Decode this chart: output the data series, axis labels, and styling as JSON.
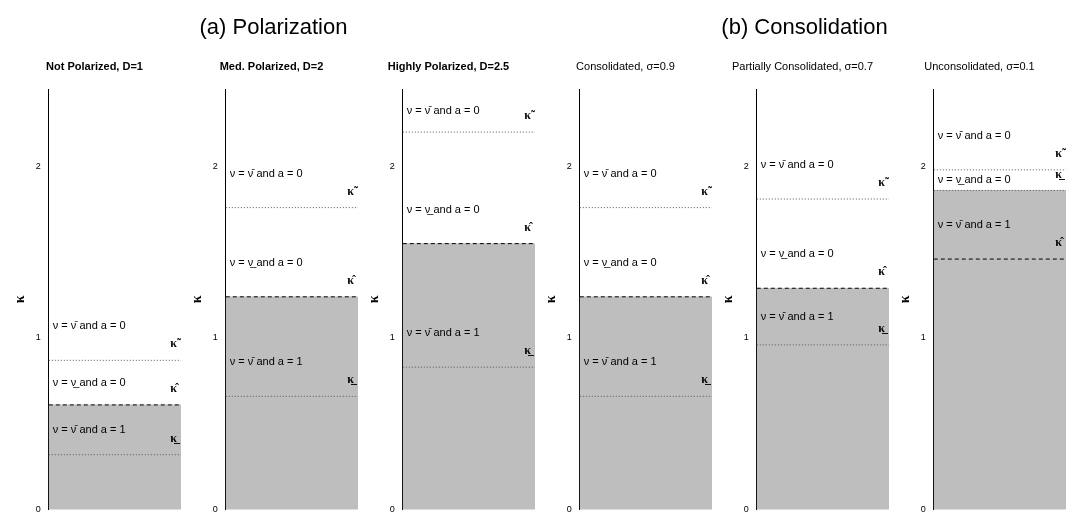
{
  "chart_data": [
    {
      "type": "bar",
      "title": "Not Polarized, D=1",
      "ylabel": "κ",
      "categories": [
        null
      ],
      "values": [
        0.61
      ],
      "color": "#bebebe",
      "ylim": [
        0,
        2.45
      ],
      "yticks": [
        0,
        1,
        2
      ],
      "grid": false,
      "legend": false,
      "ref_lines": [
        {
          "axis": "y",
          "value": 0.87,
          "label": "κ̃",
          "line_style": "dotted",
          "color": "#555555"
        },
        {
          "axis": "y",
          "value": 0.61,
          "label": "κ̂",
          "line_style": "dashed",
          "color": "#000000"
        },
        {
          "axis": "y",
          "value": 0.32,
          "label": "κ̲",
          "line_style": "dotted",
          "color": "#555555"
        }
      ],
      "annotations": [
        "(a) Polarization",
        "ν = ν̄ and a = 0",
        "ν = ν̲ and a = 0",
        "ν = ν̄ and a = 1"
      ]
    },
    {
      "type": "bar",
      "title": "Med. Polarized, D=2",
      "ylabel": "κ",
      "categories": [
        null
      ],
      "values": [
        1.24
      ],
      "color": "#bebebe",
      "ylim": [
        0,
        2.45
      ],
      "yticks": [
        0,
        1,
        2
      ],
      "grid": false,
      "legend": false,
      "ref_lines": [
        {
          "axis": "y",
          "value": 1.76,
          "label": "κ̃",
          "line_style": "dotted",
          "color": "#555555"
        },
        {
          "axis": "y",
          "value": 1.24,
          "label": "κ̂",
          "line_style": "dashed",
          "color": "#000000"
        },
        {
          "axis": "y",
          "value": 0.66,
          "label": "κ̲",
          "line_style": "dotted",
          "color": "#555555"
        }
      ],
      "annotations": [
        "ν = ν̄ and a = 0",
        "ν = ν̲ and a = 0",
        "ν = ν̄ and a = 1"
      ]
    },
    {
      "type": "bar",
      "title": "Highly Polarized, D=2.5",
      "ylabel": "κ",
      "categories": [
        null
      ],
      "values": [
        1.55
      ],
      "color": "#bebebe",
      "ylim": [
        0,
        2.45
      ],
      "yticks": [
        0,
        1,
        2
      ],
      "grid": false,
      "legend": false,
      "ref_lines": [
        {
          "axis": "y",
          "value": 2.2,
          "label": "κ̃",
          "line_style": "dotted",
          "color": "#555555"
        },
        {
          "axis": "y",
          "value": 1.55,
          "label": "κ̂",
          "line_style": "dashed",
          "color": "#000000"
        },
        {
          "axis": "y",
          "value": 0.83,
          "label": "κ̲",
          "line_style": "dotted",
          "color": "#555555"
        }
      ],
      "annotations": [
        "ν = ν̄ and a = 0",
        "ν = ν̲ and a = 0",
        "ν = ν̄ and a = 1"
      ]
    },
    {
      "type": "bar",
      "title": "Consolidated, σ=0.9",
      "ylabel": "κ",
      "categories": [
        null
      ],
      "values": [
        1.24
      ],
      "color": "#bebebe",
      "ylim": [
        0,
        2.45
      ],
      "yticks": [
        0,
        1,
        2
      ],
      "grid": false,
      "legend": false,
      "ref_lines": [
        {
          "axis": "y",
          "value": 1.76,
          "label": "κ̃",
          "line_style": "dotted",
          "color": "#555555"
        },
        {
          "axis": "y",
          "value": 1.24,
          "label": "κ̂",
          "line_style": "dashed",
          "color": "#000000"
        },
        {
          "axis": "y",
          "value": 0.66,
          "label": "κ̲",
          "line_style": "dotted",
          "color": "#555555"
        }
      ],
      "annotations": [
        "(b) Consolidation",
        "ν = ν̄ and a = 0",
        "ν = ν̲ and a = 0",
        "ν = ν̄ and a = 1"
      ]
    },
    {
      "type": "bar",
      "title": "Partially Consolidated, σ=0.7",
      "ylabel": "κ",
      "categories": [
        null
      ],
      "values": [
        1.29
      ],
      "color": "#bebebe",
      "ylim": [
        0,
        2.45
      ],
      "yticks": [
        0,
        1,
        2
      ],
      "grid": false,
      "legend": false,
      "ref_lines": [
        {
          "axis": "y",
          "value": 1.81,
          "label": "κ̃",
          "line_style": "dotted",
          "color": "#555555"
        },
        {
          "axis": "y",
          "value": 1.29,
          "label": "κ̂",
          "line_style": "dashed",
          "color": "#000000"
        },
        {
          "axis": "y",
          "value": 0.96,
          "label": "κ̲",
          "line_style": "dotted",
          "color": "#555555"
        }
      ],
      "annotations": [
        "ν = ν̄ and a = 0",
        "ν = ν̲ and a = 0",
        "ν = ν̄ and a = 1"
      ]
    },
    {
      "type": "bar",
      "title": "Unconsolidated, σ=0.1",
      "ylabel": "κ",
      "categories": [
        null
      ],
      "values": [
        1.86
      ],
      "color": "#bebebe",
      "ylim": [
        0,
        2.45
      ],
      "yticks": [
        0,
        1,
        2
      ],
      "grid": false,
      "legend": false,
      "ref_lines": [
        {
          "axis": "y",
          "value": 1.98,
          "label": "κ̃",
          "line_style": "dotted",
          "color": "#555555"
        },
        {
          "axis": "y",
          "value": 1.86,
          "label": "κ̲",
          "line_style": "dotted",
          "color": "#555555"
        },
        {
          "axis": "y",
          "value": 1.46,
          "label": "κ̂",
          "line_style": "dashed",
          "color": "#000000"
        }
      ],
      "annotations": [
        "ν = ν̄ and a = 0",
        "ν = ν̲ and a = 0",
        "ν = ν̄ and a = 1"
      ]
    }
  ]
}
